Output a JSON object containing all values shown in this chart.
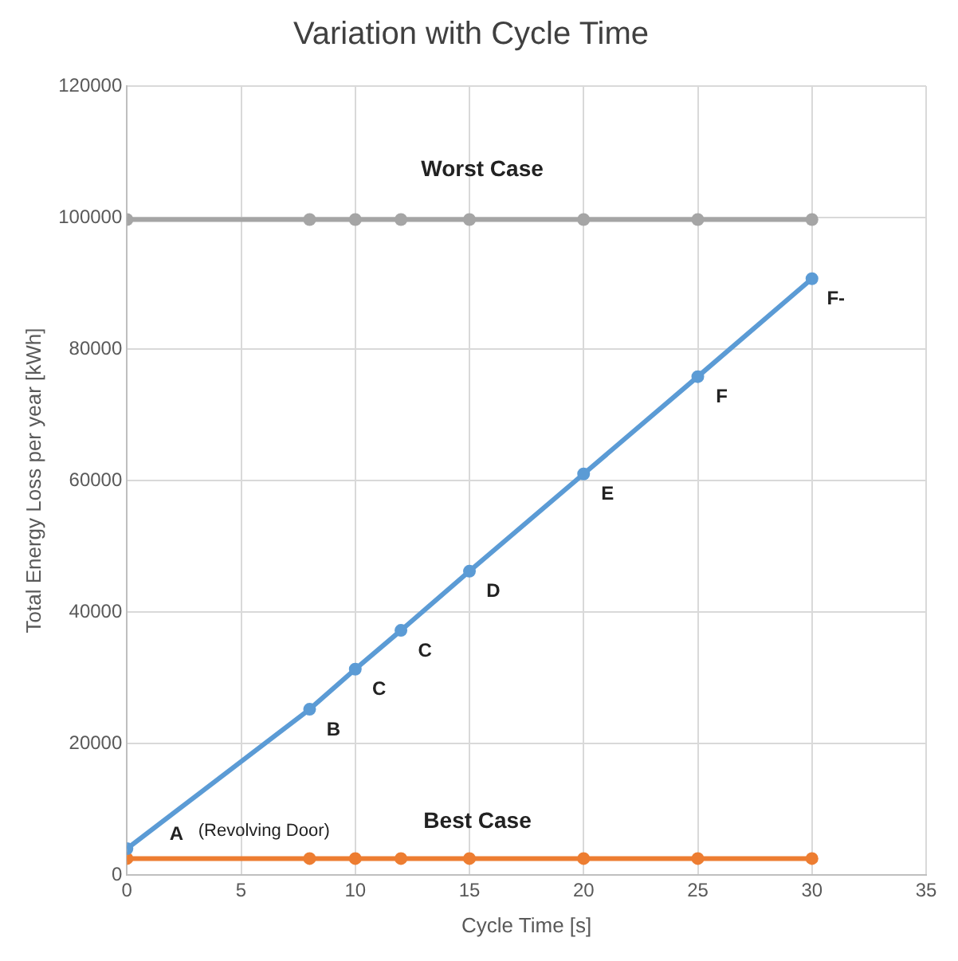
{
  "chart_data": {
    "type": "line",
    "title": "Variation with Cycle Time",
    "xlabel": "Cycle Time [s]",
    "ylabel": "Total Energy Loss per year [kWh]",
    "x": [
      0,
      8,
      10,
      12,
      15,
      20,
      25,
      30
    ],
    "series": [
      {
        "color": "#a5a5a5",
        "values": [
          99700,
          99700,
          99700,
          99700,
          99700,
          99700,
          99700,
          99700
        ]
      },
      {
        "color": "#5b9bd5",
        "values": [
          4000,
          25200,
          31300,
          37200,
          46200,
          61000,
          75800,
          90700
        ]
      },
      {
        "color": "#ed7d31",
        "values": [
          2500,
          2500,
          2500,
          2500,
          2500,
          2500,
          2500,
          2500
        ]
      }
    ],
    "xlim": [
      0,
      35
    ],
    "xticks": [
      0,
      5,
      10,
      15,
      20,
      25,
      30,
      35
    ],
    "ylim": [
      0,
      120000
    ],
    "yticks": [
      0,
      20000,
      40000,
      60000,
      80000,
      100000,
      120000
    ],
    "grid": true,
    "legend": false,
    "marker": "circle",
    "line_style": "solid",
    "annotations": [
      {
        "text": "Worst Case",
        "x": 15,
        "y": 99700
      },
      {
        "text": "Best Case",
        "x": 15,
        "y": 2500
      },
      {
        "text": "A",
        "x": 0,
        "y": 4000
      },
      "(Revolving Door)",
      {
        "text": "B",
        "x": 8,
        "y": 25200
      },
      {
        "text": "C",
        "x": 10,
        "y": 31300
      },
      {
        "text": "C",
        "x": 12,
        "y": 37200
      },
      {
        "text": "D",
        "x": 15,
        "y": 46200
      },
      {
        "text": "E",
        "x": 20,
        "y": 61000
      },
      {
        "text": "F",
        "x": 25,
        "y": 75800
      },
      {
        "text": "F-",
        "x": 30,
        "y": 90700
      }
    ]
  }
}
